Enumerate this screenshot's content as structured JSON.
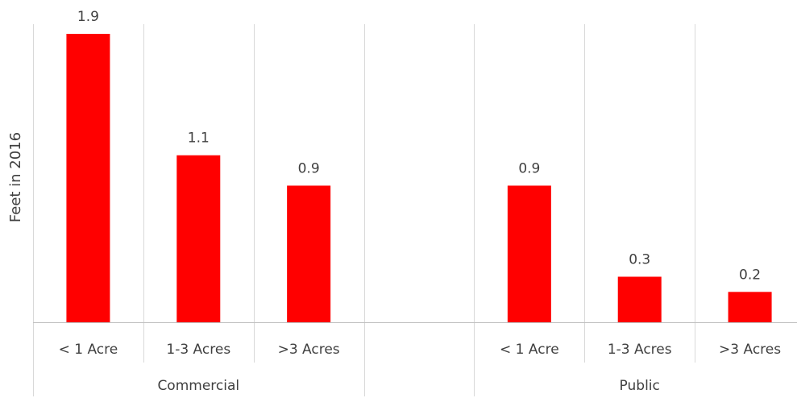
{
  "chart_data": {
    "type": "bar",
    "ylabel": "Feet in 2016",
    "xlabel": "",
    "title": "",
    "ylim": [
      0,
      2.0
    ],
    "grid": true,
    "bar_color": "#ff0000",
    "groups": [
      {
        "name": "Commercial",
        "categories": [
          "< 1 Acre",
          "1-3 Acres",
          ">3 Acres"
        ]
      },
      {
        "name": "",
        "categories": [
          ""
        ]
      },
      {
        "name": "Public",
        "categories": [
          "< 1 Acre",
          "1-3 Acres",
          ">3 Acres"
        ]
      }
    ],
    "categories": [
      "< 1 Acre",
      "1-3 Acres",
      ">3 Acres",
      "",
      "< 1 Acre",
      "1-3 Acres",
      ">3 Acres"
    ],
    "values": [
      1.9,
      1.1,
      0.9,
      null,
      0.9,
      0.3,
      0.2
    ],
    "data_labels": [
      "1.9",
      "1.1",
      "0.9",
      "",
      "0.9",
      "0.3",
      "0.2"
    ]
  }
}
